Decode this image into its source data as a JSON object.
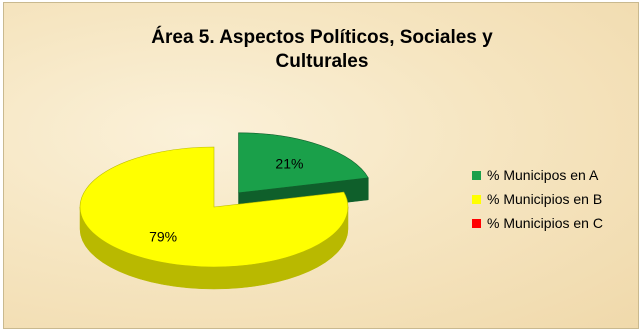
{
  "chart_data": {
    "type": "pie",
    "title": "Área 5. Aspectos Políticos, Sociales y Culturales",
    "title_lines": [
      "Área 5. Aspectos Políticos, Sociales y",
      "Culturales"
    ],
    "categories": [
      "% Municipos en A",
      "% Municipios en B",
      "% Municipios en C"
    ],
    "values": [
      21,
      79,
      0
    ],
    "data_labels": [
      "21%",
      "79%",
      ""
    ],
    "colors": [
      "#1aa04a",
      "#ffff00",
      "#ff0000"
    ],
    "side_colors": [
      "#0f5f2b",
      "#b9b900",
      "#a00000"
    ],
    "style": "3d-exploded",
    "legend_position": "right"
  }
}
